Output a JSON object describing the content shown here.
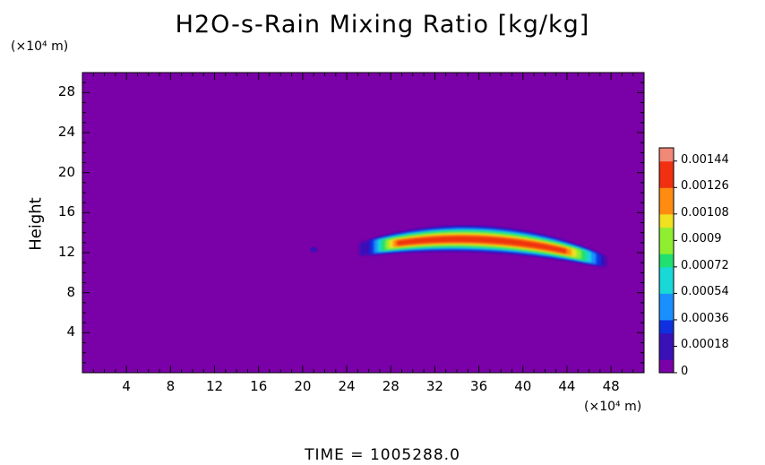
{
  "chart_data": {
    "type": "heatmap",
    "title": "H2O-s-Rain Mixing Ratio [kg/kg]",
    "xlabel": "",
    "ylabel": "Height",
    "x_unit": "(×10⁴ m)",
    "y_unit": "(×10⁴ m)",
    "xlim": [
      0,
      51
    ],
    "ylim": [
      0,
      30
    ],
    "x_ticks": [
      "4",
      "8",
      "12",
      "16",
      "20",
      "24",
      "28",
      "32",
      "36",
      "40",
      "44",
      "48"
    ],
    "y_ticks": [
      "4",
      "8",
      "12",
      "16",
      "20",
      "24",
      "28"
    ],
    "colorbar": {
      "ticks": [
        "0",
        "0.00018",
        "0.00036",
        "0.00054",
        "0.00072",
        "0.0009",
        "0.00108",
        "0.00126",
        "0.00144"
      ],
      "min": 0,
      "max": 0.00153,
      "colors": [
        "#7a00a8",
        "#3a10b8",
        "#1030e0",
        "#1a90ff",
        "#18d8d8",
        "#20e070",
        "#90ee30",
        "#f0e020",
        "#ff8c10",
        "#f03010",
        "#f08878"
      ]
    },
    "features": [
      {
        "name": "rain band",
        "x_range": [
          24.8,
          48
        ],
        "y_range": [
          11,
          15
        ],
        "peak": 0.00135
      }
    ],
    "time_label": "TIME  =  1005288.0"
  }
}
